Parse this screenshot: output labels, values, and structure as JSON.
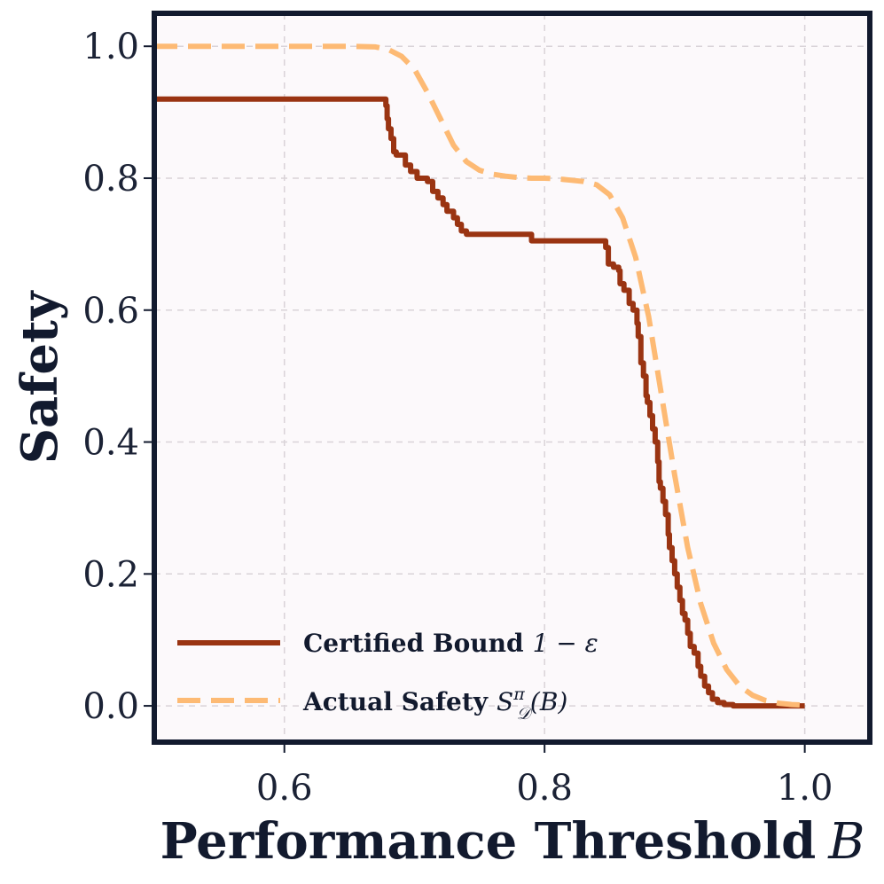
{
  "chart_data": {
    "type": "line",
    "xlabel": "Performance Threshold",
    "xlabel_var": "B",
    "ylabel": "Safety",
    "xlim": [
      0.5,
      1.05
    ],
    "ylim": [
      -0.055,
      1.05
    ],
    "xticks": [
      0.6,
      0.8,
      1.0
    ],
    "xtick_labels": [
      "0.6",
      "0.8",
      "1.0"
    ],
    "yticks": [
      0.0,
      0.2,
      0.4,
      0.6,
      0.8,
      1.0
    ],
    "ytick_labels": [
      "0.0",
      "0.2",
      "0.4",
      "0.6",
      "0.8",
      "1.0"
    ],
    "grid": true,
    "legend_position": "lower-left",
    "background": "#fcf9fb",
    "frame_color": "#121a2e",
    "series": [
      {
        "name": "Certified Bound 1 − ε",
        "legend_text": "Certified Bound",
        "legend_math": "1 − ε",
        "style": "step-solid",
        "color": "#9a3412",
        "x": [
          0.5,
          0.677,
          0.678,
          0.679,
          0.68,
          0.682,
          0.684,
          0.686,
          0.693,
          0.697,
          0.702,
          0.71,
          0.714,
          0.718,
          0.722,
          0.725,
          0.73,
          0.733,
          0.736,
          0.74,
          0.75,
          0.79,
          0.845,
          0.847,
          0.849,
          0.853,
          0.857,
          0.858,
          0.861,
          0.865,
          0.868,
          0.871,
          0.872,
          0.874,
          0.876,
          0.878,
          0.879,
          0.881,
          0.883,
          0.885,
          0.887,
          0.888,
          0.889,
          0.891,
          0.893,
          0.895,
          0.896,
          0.898,
          0.9,
          0.902,
          0.904,
          0.906,
          0.908,
          0.91,
          0.912,
          0.915,
          0.918,
          0.92,
          0.923,
          0.926,
          0.929,
          0.933,
          0.938,
          0.945,
          1.0
        ],
        "values": [
          0.92,
          0.92,
          0.91,
          0.89,
          0.875,
          0.86,
          0.84,
          0.835,
          0.82,
          0.81,
          0.8,
          0.795,
          0.78,
          0.77,
          0.76,
          0.75,
          0.74,
          0.73,
          0.72,
          0.715,
          0.715,
          0.705,
          0.705,
          0.695,
          0.67,
          0.665,
          0.66,
          0.64,
          0.63,
          0.61,
          0.6,
          0.58,
          0.56,
          0.52,
          0.5,
          0.47,
          0.46,
          0.44,
          0.42,
          0.4,
          0.37,
          0.34,
          0.33,
          0.31,
          0.29,
          0.26,
          0.24,
          0.22,
          0.2,
          0.18,
          0.16,
          0.14,
          0.13,
          0.11,
          0.09,
          0.08,
          0.06,
          0.045,
          0.03,
          0.02,
          0.01,
          0.005,
          0.002,
          0.0,
          0.0
        ]
      },
      {
        "name": "Actual Safety S_D^π(B)",
        "legend_text": "Actual Safety",
        "legend_math": "S",
        "legend_math_sup": "π",
        "legend_math_sub": "𝒟",
        "legend_math_arg": "(B)",
        "style": "dashed",
        "color": "#fdba74",
        "x": [
          0.5,
          0.55,
          0.6,
          0.65,
          0.67,
          0.68,
          0.69,
          0.7,
          0.71,
          0.72,
          0.73,
          0.74,
          0.75,
          0.76,
          0.77,
          0.78,
          0.79,
          0.8,
          0.81,
          0.82,
          0.83,
          0.84,
          0.85,
          0.86,
          0.87,
          0.88,
          0.89,
          0.9,
          0.91,
          0.92,
          0.93,
          0.94,
          0.95,
          0.96,
          0.97,
          0.98,
          0.99,
          1.0
        ],
        "values": [
          1.0,
          1.0,
          1.0,
          1.0,
          0.999,
          0.995,
          0.985,
          0.965,
          0.93,
          0.89,
          0.85,
          0.825,
          0.812,
          0.806,
          0.803,
          0.801,
          0.8,
          0.8,
          0.799,
          0.797,
          0.795,
          0.79,
          0.775,
          0.74,
          0.68,
          0.59,
          0.47,
          0.35,
          0.24,
          0.155,
          0.095,
          0.055,
          0.03,
          0.016,
          0.008,
          0.004,
          0.002,
          0.001
        ]
      }
    ]
  }
}
